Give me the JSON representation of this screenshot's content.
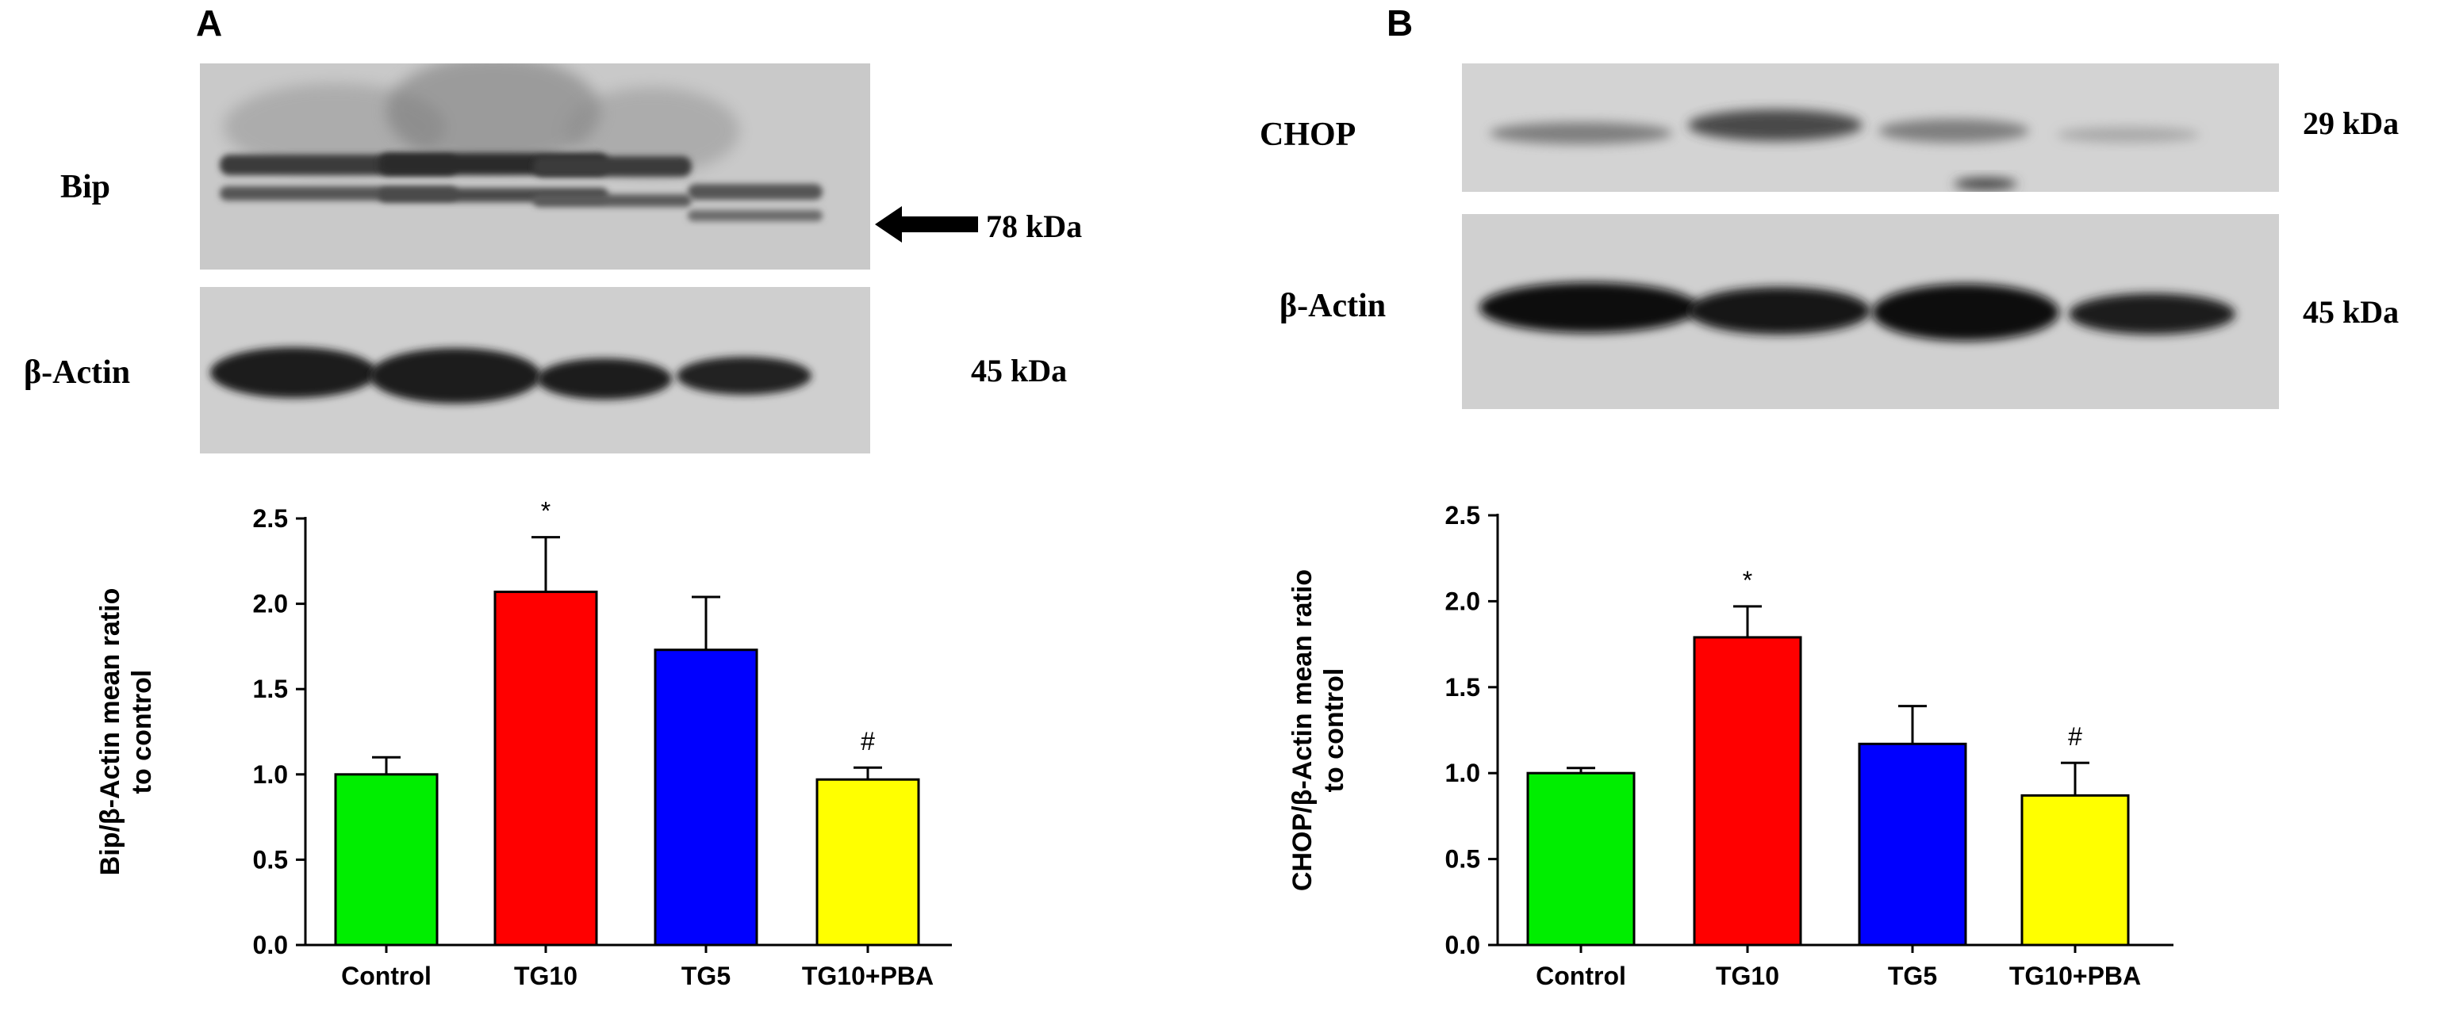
{
  "panel_a": {
    "letter": "A",
    "blot_top_label": "Bip",
    "blot_top_kda": "78 kDa",
    "blot_bottom_label": "β-Actin",
    "blot_bottom_kda": "45 kDa",
    "arrow_icon": "left-arrow-icon"
  },
  "panel_b": {
    "letter": "B",
    "blot_top_label": "CHOP",
    "blot_top_kda": "29 kDa",
    "blot_bottom_label": "β-Actin",
    "blot_bottom_kda": "45 kDa"
  },
  "colors": {
    "Control": "#00ee00",
    "TG10": "#ff0000",
    "TG5": "#0000ff",
    "TG10+PBA": "#ffff00"
  },
  "chart_data": [
    {
      "type": "bar",
      "panel": "A",
      "categories": [
        "Control",
        "TG10",
        "TG5",
        "TG10+PBA"
      ],
      "values": [
        1.0,
        2.07,
        1.73,
        0.97
      ],
      "errors": [
        0.1,
        0.32,
        0.31,
        0.07
      ],
      "annotations": [
        "",
        "*",
        "",
        "#"
      ],
      "title": "",
      "xlabel": "",
      "ylabel_line1": "Bip/β-Actin mean ratio",
      "ylabel_line2": "to control",
      "ylim": [
        0,
        2.5
      ],
      "yticks": [
        "0.0",
        "0.5",
        "1.0",
        "1.5",
        "2.0",
        "2.5"
      ],
      "grid": false
    },
    {
      "type": "bar",
      "panel": "B",
      "categories": [
        "Control",
        "TG10",
        "TG5",
        "TG10+PBA"
      ],
      "values": [
        1.0,
        1.79,
        1.17,
        0.87
      ],
      "errors": [
        0.03,
        0.18,
        0.22,
        0.19
      ],
      "annotations": [
        "",
        "*",
        "",
        "#"
      ],
      "title": "",
      "xlabel": "",
      "ylabel_line1": "CHOP/β-Actin mean ratio",
      "ylabel_line2": "to control",
      "ylim": [
        0,
        2.5
      ],
      "yticks": [
        "0.0",
        "0.5",
        "1.0",
        "1.5",
        "2.0",
        "2.5"
      ],
      "grid": false
    }
  ]
}
